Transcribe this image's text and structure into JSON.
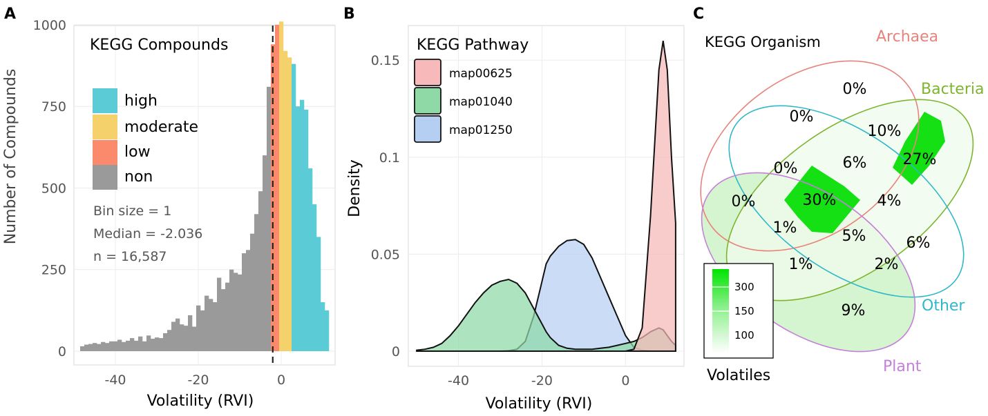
{
  "chart_data": [
    {
      "panel": "A",
      "type": "bar",
      "title": "KEGG Compounds",
      "xlabel": "Volatility (RVI)",
      "ylabel": "Number of Compounds",
      "xlim": [
        -50,
        13
      ],
      "ylim": [
        0,
        1040
      ],
      "xticks": [
        -40,
        -20,
        0
      ],
      "yticks": [
        0,
        250,
        500,
        750,
        1000
      ],
      "grid": true,
      "legend_position": "left",
      "median_line": -2.036,
      "annotations": [
        "Bin size = 1",
        "Median = -2.036",
        "n = 16,587"
      ],
      "series": [
        {
          "name": "high",
          "color": "#5BCCD6"
        },
        {
          "name": "moderate",
          "color": "#F4D16B"
        },
        {
          "name": "low",
          "color": "#FB8A6C"
        },
        {
          "name": "non",
          "color": "#9A9A9A"
        }
      ],
      "bins": [
        {
          "x": -48,
          "y": 15,
          "s": "non"
        },
        {
          "x": -47,
          "y": 20,
          "s": "non"
        },
        {
          "x": -46,
          "y": 22,
          "s": "non"
        },
        {
          "x": -45,
          "y": 25,
          "s": "non"
        },
        {
          "x": -44,
          "y": 22,
          "s": "non"
        },
        {
          "x": -43,
          "y": 28,
          "s": "non"
        },
        {
          "x": -42,
          "y": 25,
          "s": "non"
        },
        {
          "x": -41,
          "y": 30,
          "s": "non"
        },
        {
          "x": -40,
          "y": 30,
          "s": "non"
        },
        {
          "x": -39,
          "y": 35,
          "s": "non"
        },
        {
          "x": -38,
          "y": 28,
          "s": "non"
        },
        {
          "x": -37,
          "y": 32,
          "s": "non"
        },
        {
          "x": -36,
          "y": 40,
          "s": "non"
        },
        {
          "x": -35,
          "y": 32,
          "s": "non"
        },
        {
          "x": -34,
          "y": 45,
          "s": "non"
        },
        {
          "x": -33,
          "y": 30,
          "s": "non"
        },
        {
          "x": -32,
          "y": 48,
          "s": "non"
        },
        {
          "x": -31,
          "y": 38,
          "s": "non"
        },
        {
          "x": -30,
          "y": 42,
          "s": "non"
        },
        {
          "x": -29,
          "y": 40,
          "s": "non"
        },
        {
          "x": -28,
          "y": 55,
          "s": "non"
        },
        {
          "x": -27,
          "y": 65,
          "s": "non"
        },
        {
          "x": -26,
          "y": 90,
          "s": "non"
        },
        {
          "x": -25,
          "y": 100,
          "s": "non"
        },
        {
          "x": -24,
          "y": 82,
          "s": "non"
        },
        {
          "x": -23,
          "y": 78,
          "s": "non"
        },
        {
          "x": -22,
          "y": 110,
          "s": "non"
        },
        {
          "x": -21,
          "y": 75,
          "s": "non"
        },
        {
          "x": -20,
          "y": 140,
          "s": "non"
        },
        {
          "x": -19,
          "y": 125,
          "s": "non"
        },
        {
          "x": -18,
          "y": 170,
          "s": "non"
        },
        {
          "x": -17,
          "y": 160,
          "s": "non"
        },
        {
          "x": -16,
          "y": 150,
          "s": "non"
        },
        {
          "x": -15,
          "y": 225,
          "s": "non"
        },
        {
          "x": -14,
          "y": 190,
          "s": "non"
        },
        {
          "x": -13,
          "y": 210,
          "s": "non"
        },
        {
          "x": -12,
          "y": 250,
          "s": "non"
        },
        {
          "x": -11,
          "y": 240,
          "s": "non"
        },
        {
          "x": -10,
          "y": 235,
          "s": "non"
        },
        {
          "x": -9,
          "y": 300,
          "s": "non"
        },
        {
          "x": -8,
          "y": 310,
          "s": "non"
        },
        {
          "x": -7,
          "y": 360,
          "s": "non"
        },
        {
          "x": -6,
          "y": 420,
          "s": "non"
        },
        {
          "x": -5,
          "y": 490,
          "s": "non"
        },
        {
          "x": -4,
          "y": 600,
          "s": "non"
        },
        {
          "x": -3,
          "y": 810,
          "s": "non"
        },
        {
          "x": -2,
          "y": 940,
          "s": "low"
        },
        {
          "x": -1,
          "y": 1000,
          "s": "low"
        },
        {
          "x": 0,
          "y": 1010,
          "s": "moderate"
        },
        {
          "x": 1,
          "y": 920,
          "s": "moderate"
        },
        {
          "x": 2,
          "y": 900,
          "s": "moderate"
        },
        {
          "x": 3,
          "y": 880,
          "s": "high"
        },
        {
          "x": 4,
          "y": 750,
          "s": "high"
        },
        {
          "x": 5,
          "y": 770,
          "s": "high"
        },
        {
          "x": 6,
          "y": 740,
          "s": "high"
        },
        {
          "x": 7,
          "y": 560,
          "s": "high"
        },
        {
          "x": 8,
          "y": 450,
          "s": "high"
        },
        {
          "x": 9,
          "y": 350,
          "s": "high"
        },
        {
          "x": 10,
          "y": 150,
          "s": "high"
        },
        {
          "x": 11,
          "y": 125,
          "s": "high"
        }
      ]
    },
    {
      "panel": "B",
      "type": "area",
      "title": "KEGG Pathway",
      "xlabel": "Volatility (RVI)",
      "ylabel": "Density",
      "xlim": [
        -52,
        14
      ],
      "ylim": [
        0,
        0.165
      ],
      "xticks": [
        -40,
        -20,
        0
      ],
      "yticks": [
        0,
        0.05,
        0.1,
        0.15
      ],
      "ytick_labels": [
        "0",
        "0.05",
        "0.1",
        "0.15"
      ],
      "grid": true,
      "legend_position": "top-left",
      "x": [
        -50,
        -48,
        -46,
        -44,
        -42,
        -40,
        -38,
        -36,
        -34,
        -32,
        -30,
        -28,
        -26,
        -24,
        -22,
        -20,
        -19,
        -18,
        -16,
        -14,
        -12,
        -10,
        -8,
        -6,
        -4,
        -2,
        0,
        2,
        4,
        6,
        8,
        9,
        10,
        11,
        12
      ],
      "series": [
        {
          "name": "map00625",
          "color": "#F7B9B9",
          "values": [
            0,
            0,
            0,
            0,
            0,
            0,
            0,
            0,
            0,
            0,
            0,
            0,
            0,
            0,
            0,
            0,
            0,
            0,
            0,
            0,
            0,
            0,
            0,
            0,
            0,
            0,
            0,
            0.001,
            0.012,
            0.07,
            0.145,
            0.16,
            0.145,
            0.1,
            0.066
          ]
        },
        {
          "name": "map01040",
          "color": "#8ED9A6",
          "values": [
            0.0005,
            0.001,
            0.002,
            0.004,
            0.008,
            0.013,
            0.019,
            0.025,
            0.03,
            0.034,
            0.036,
            0.037,
            0.035,
            0.03,
            0.022,
            0.014,
            0.01,
            0.007,
            0.003,
            0.0015,
            0.001,
            0.001,
            0.001,
            0.0015,
            0.002,
            0.003,
            0.004,
            0.005,
            0.007,
            0.01,
            0.012,
            0.011,
            0.008,
            0.005,
            0.003
          ]
        },
        {
          "name": "map01250",
          "color": "#B5CFF2",
          "values": [
            0,
            0,
            0,
            0,
            0,
            0,
            0,
            0,
            0,
            0,
            0,
            0.0002,
            0.001,
            0.005,
            0.018,
            0.036,
            0.045,
            0.049,
            0.054,
            0.057,
            0.0575,
            0.055,
            0.048,
            0.038,
            0.028,
            0.018,
            0.008,
            0.002,
            0.0005,
            0,
            0,
            0,
            0,
            0,
            0
          ]
        }
      ]
    },
    {
      "panel": "C",
      "type": "heatmap",
      "title": "KEGG Organism",
      "sets": [
        {
          "name": "Archaea",
          "color": "#E8837B"
        },
        {
          "name": "Bacteria",
          "color": "#7DB52F"
        },
        {
          "name": "Other",
          "color": "#2FB8C8"
        },
        {
          "name": "Plant",
          "color": "#C47FD8"
        }
      ],
      "regions": [
        "0%",
        "10%",
        "27%",
        "0%",
        "6%",
        "0%",
        "30%",
        "4%",
        "0%",
        "1%",
        "5%",
        "6%",
        "1%",
        "2%",
        "9%"
      ],
      "colorbar": {
        "title": "Volatiles",
        "ticks": [
          "300",
          "150",
          "100"
        ],
        "colors": [
          "#00E400",
          "#ffffff"
        ]
      }
    }
  ],
  "panel_labels": [
    "A",
    "B",
    "C"
  ]
}
